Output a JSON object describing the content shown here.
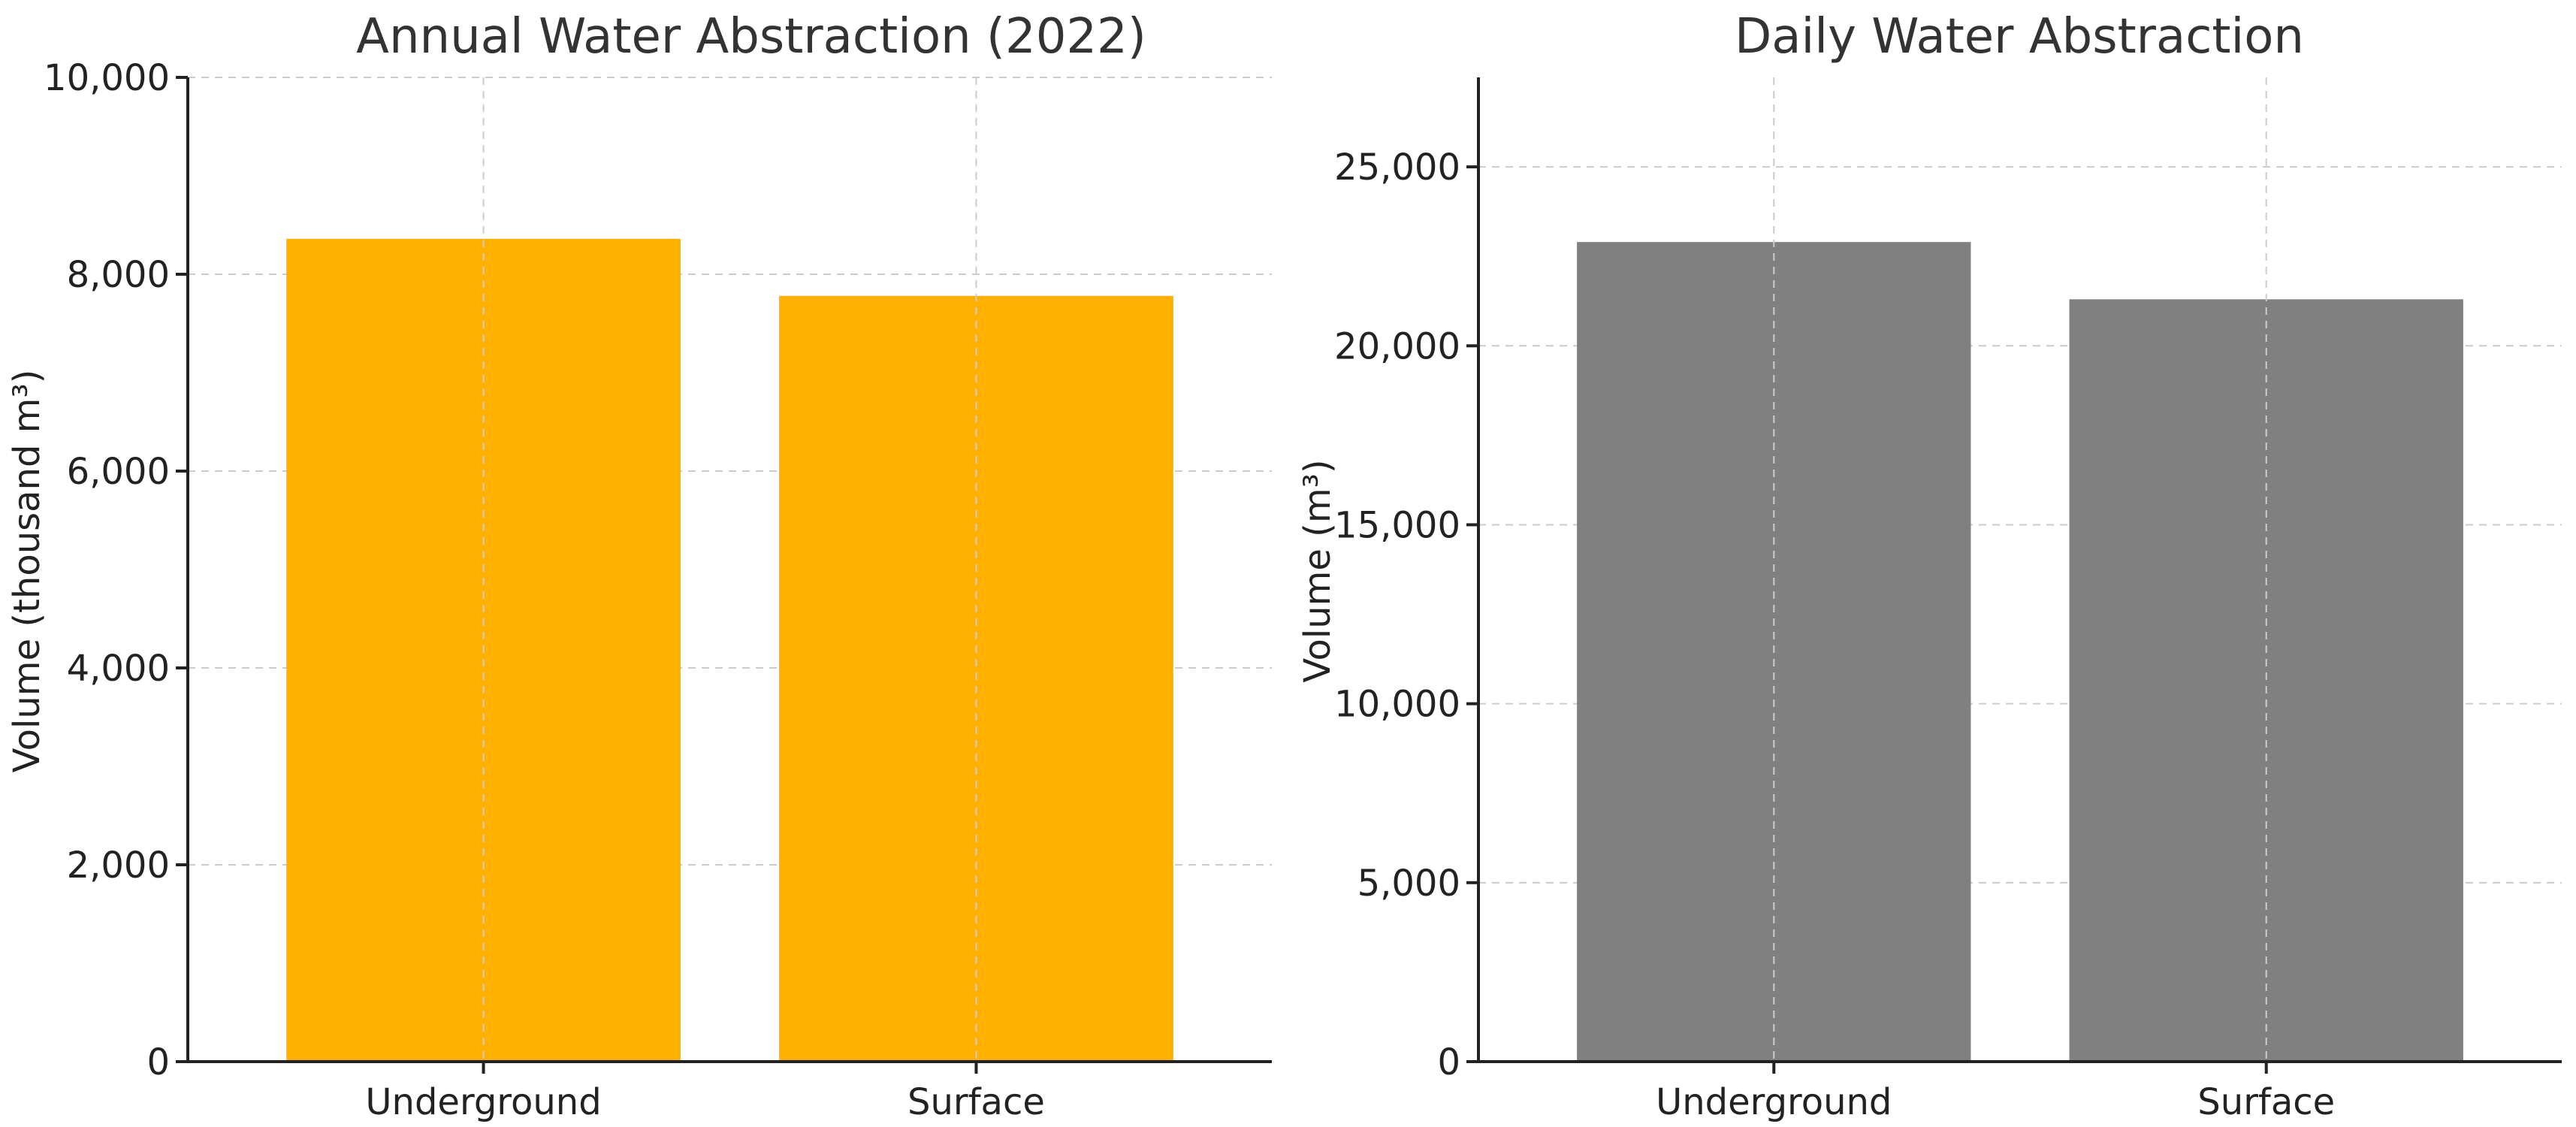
{
  "chart_data": [
    {
      "type": "bar",
      "title": "Annual Water Abstraction (2022)",
      "xlabel": "",
      "ylabel": "Volume (thousand m³)",
      "categories": [
        "Underground",
        "Surface"
      ],
      "values": [
        8360,
        7780
      ],
      "ylim": [
        0,
        10000
      ],
      "yticks": [
        0,
        2000,
        4000,
        6000,
        8000,
        10000
      ],
      "ytick_labels": [
        "0",
        "2,000",
        "4,000",
        "6,000",
        "8,000",
        "10,000"
      ],
      "bar_color": "#ffb000",
      "grid": true
    },
    {
      "type": "bar",
      "title": "Daily Water Abstraction",
      "xlabel": "",
      "ylabel": "Volume (m³)",
      "categories": [
        "Underground",
        "Surface"
      ],
      "values": [
        22900,
        21300
      ],
      "ylim": [
        0,
        27500
      ],
      "yticks": [
        0,
        5000,
        10000,
        15000,
        20000,
        25000
      ],
      "ytick_labels": [
        "0",
        "5,000",
        "10,000",
        "15,000",
        "20,000",
        "25,000"
      ],
      "bar_color": "#808080",
      "grid": true
    }
  ]
}
